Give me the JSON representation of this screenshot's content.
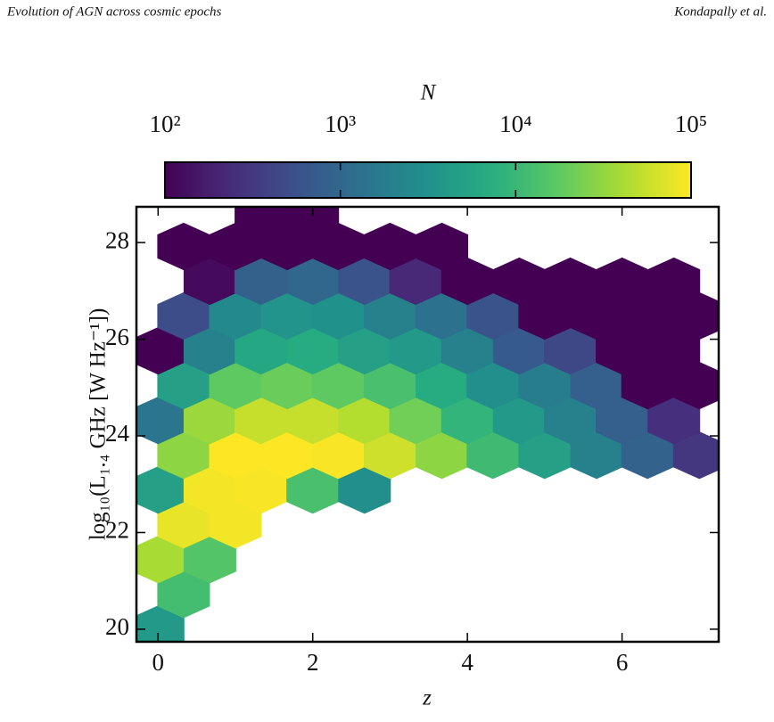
{
  "header": {
    "left": "Evolution of AGN across cosmic epochs",
    "right": "Kondapally et al."
  },
  "chart_data": {
    "type": "hexbin",
    "xlabel": "z",
    "ylabel": "log₁₀(L₁.₄ GHz [W Hz⁻¹])",
    "colorbar_label": "N",
    "colormap": "viridis",
    "color_scale": "log",
    "clim": [
      100,
      100000
    ],
    "cticks": [
      {
        "value": 100,
        "label": "10²"
      },
      {
        "value": 1000,
        "label": "10³"
      },
      {
        "value": 10000,
        "label": "10⁴"
      },
      {
        "value": 100000,
        "label": "10⁵"
      }
    ],
    "xlim": [
      -0.28,
      7.25
    ],
    "ylim": [
      19.74,
      28.74
    ],
    "xticks": [
      0,
      2,
      4,
      6
    ],
    "yticks": [
      20,
      22,
      24,
      26,
      28
    ],
    "x": [
      0,
      0.33,
      0,
      0.67,
      0.33,
      1.0,
      0,
      0.67,
      1.33,
      2.0,
      2.67,
      0.33,
      1.0,
      1.67,
      2.33,
      3.0,
      3.67,
      4.33,
      5.0,
      5.67,
      6.33,
      7.0,
      0,
      0.67,
      1.33,
      2.0,
      2.67,
      3.33,
      4.0,
      4.67,
      5.33,
      6.0,
      6.67,
      0.33,
      1.0,
      1.67,
      2.33,
      3.0,
      3.67,
      4.33,
      5.0,
      5.67,
      6.33,
      7.0,
      0,
      0.67,
      1.33,
      2.0,
      2.67,
      3.33,
      4.0,
      4.67,
      5.33,
      6.0,
      6.67,
      0.33,
      1.0,
      1.67,
      2.33,
      3.0,
      3.67,
      4.33,
      5.0,
      5.67,
      6.33,
      7.0,
      0.67,
      1.33,
      2.0,
      2.67,
      3.33,
      4.0,
      4.67,
      5.33,
      6.0,
      6.67,
      0.33,
      1.0,
      1.67,
      2.33,
      3.0,
      3.67,
      1.33,
      2.0
    ],
    "y": [
      20.0,
      20.72,
      21.44,
      21.44,
      22.16,
      22.16,
      22.88,
      22.88,
      22.88,
      22.88,
      22.88,
      23.6,
      23.6,
      23.6,
      23.6,
      23.6,
      23.6,
      23.6,
      23.6,
      23.6,
      23.6,
      23.6,
      24.32,
      24.32,
      24.32,
      24.32,
      24.32,
      24.32,
      24.32,
      24.32,
      24.32,
      24.32,
      24.32,
      25.04,
      25.04,
      25.04,
      25.04,
      25.04,
      25.04,
      25.04,
      25.04,
      25.04,
      25.04,
      25.04,
      25.76,
      25.76,
      25.76,
      25.76,
      25.76,
      25.76,
      25.76,
      25.76,
      25.76,
      25.76,
      25.76,
      26.48,
      26.48,
      26.48,
      26.48,
      26.48,
      26.48,
      26.48,
      26.48,
      26.48,
      26.48,
      26.48,
      27.2,
      27.2,
      27.2,
      27.2,
      27.2,
      27.2,
      27.2,
      27.2,
      27.2,
      27.2,
      27.92,
      27.92,
      27.92,
      27.92,
      27.92,
      27.92,
      28.64,
      28.64
    ],
    "values": [
      4000,
      12000,
      40000,
      15000,
      80000,
      90000,
      5000,
      90000,
      95000,
      13000,
      3000,
      30000,
      100000,
      100000,
      95000,
      60000,
      30000,
      11000,
      5000,
      2000,
      900,
      300,
      1500,
      35000,
      55000,
      55000,
      45000,
      22000,
      9000,
      4000,
      2000,
      800,
      250,
      5000,
      18000,
      20000,
      18000,
      13000,
      7000,
      3000,
      1800,
      800,
      100,
      100,
      100,
      2000,
      6000,
      7000,
      5000,
      4000,
      2000,
      700,
      450,
      100,
      100,
      500,
      2500,
      3500,
      3200,
      2000,
      1300,
      600,
      100,
      100,
      100,
      100,
      120,
      850,
      1000,
      600,
      220,
      100,
      100,
      100,
      100,
      100,
      100,
      100,
      100,
      100,
      100,
      100,
      100,
      100
    ]
  }
}
